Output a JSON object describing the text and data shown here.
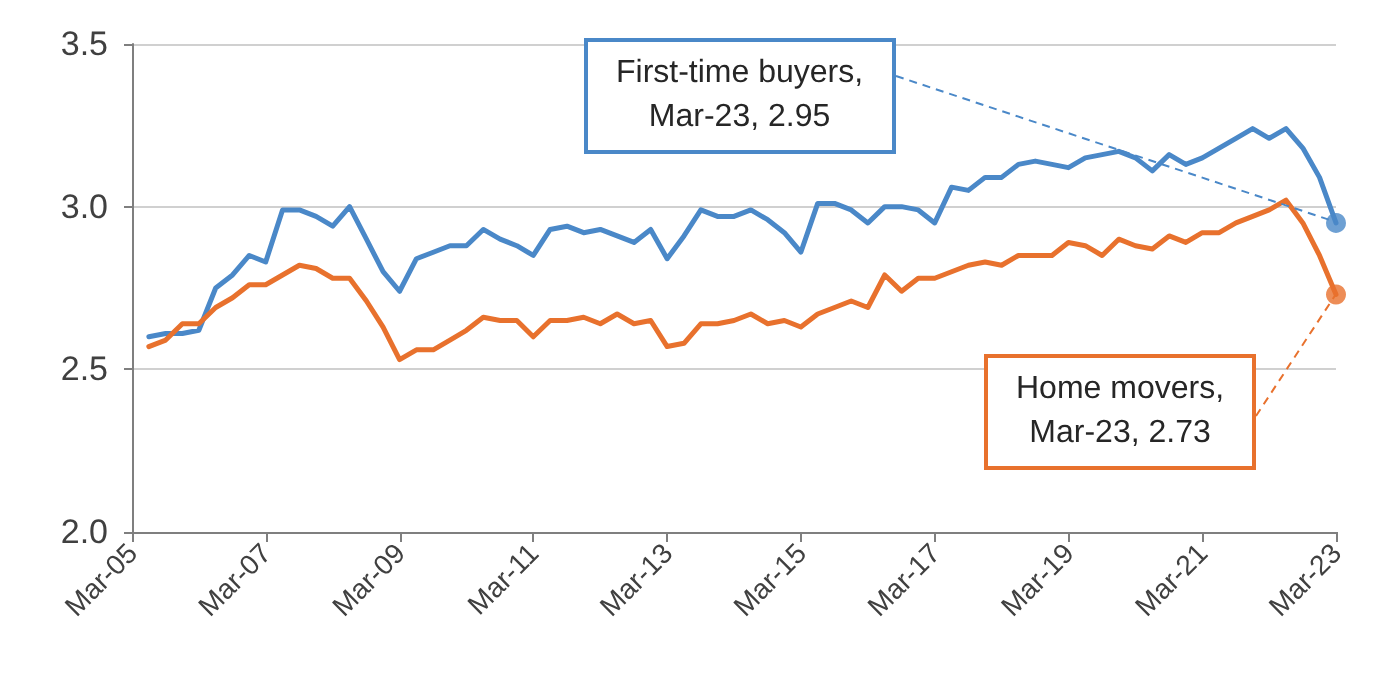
{
  "chart_data": {
    "type": "line",
    "x": [
      "2005-06",
      "2005-09",
      "2005-12",
      "2006-03",
      "2006-06",
      "2006-09",
      "2006-12",
      "2007-03",
      "2007-06",
      "2007-09",
      "2007-12",
      "2008-03",
      "2008-06",
      "2008-09",
      "2008-12",
      "2009-03",
      "2009-06",
      "2009-09",
      "2009-12",
      "2010-03",
      "2010-06",
      "2010-09",
      "2010-12",
      "2011-03",
      "2011-06",
      "2011-09",
      "2011-12",
      "2012-03",
      "2012-06",
      "2012-09",
      "2012-12",
      "2013-03",
      "2013-06",
      "2013-09",
      "2013-12",
      "2014-03",
      "2014-06",
      "2014-09",
      "2014-12",
      "2015-03",
      "2015-06",
      "2015-09",
      "2015-12",
      "2016-03",
      "2016-06",
      "2016-09",
      "2016-12",
      "2017-03",
      "2017-06",
      "2017-09",
      "2017-12",
      "2018-03",
      "2018-06",
      "2018-09",
      "2018-12",
      "2019-03",
      "2019-06",
      "2019-09",
      "2019-12",
      "2020-03",
      "2020-06",
      "2020-09",
      "2020-12",
      "2021-03",
      "2021-06",
      "2021-09",
      "2021-12",
      "2022-03",
      "2022-06",
      "2022-09",
      "2022-12",
      "2023-03"
    ],
    "series": [
      {
        "color": "#4a88c8",
        "values": [
          2.6,
          2.61,
          2.61,
          2.62,
          2.75,
          2.79,
          2.85,
          2.83,
          2.99,
          2.99,
          2.97,
          2.94,
          3.0,
          2.9,
          2.8,
          2.74,
          2.84,
          2.86,
          2.88,
          2.88,
          2.93,
          2.9,
          2.88,
          2.85,
          2.93,
          2.94,
          2.92,
          2.93,
          2.91,
          2.89,
          2.93,
          2.84,
          2.91,
          2.99,
          2.97,
          2.97,
          2.99,
          2.96,
          2.92,
          2.86,
          3.01,
          3.01,
          2.99,
          2.95,
          3.0,
          3.0,
          2.99,
          2.95,
          3.06,
          3.05,
          3.09,
          3.09,
          3.13,
          3.14,
          3.13,
          3.12,
          3.15,
          3.16,
          3.17,
          3.15,
          3.11,
          3.16,
          3.13,
          3.15,
          3.18,
          3.21,
          3.24,
          3.21,
          3.24,
          3.18,
          3.09,
          2.95
        ]
      },
      {
        "color": "#e8712d",
        "values": [
          2.57,
          2.59,
          2.64,
          2.64,
          2.69,
          2.72,
          2.76,
          2.76,
          2.79,
          2.82,
          2.81,
          2.78,
          2.78,
          2.71,
          2.63,
          2.53,
          2.56,
          2.56,
          2.59,
          2.62,
          2.66,
          2.65,
          2.65,
          2.6,
          2.65,
          2.65,
          2.66,
          2.64,
          2.67,
          2.64,
          2.65,
          2.57,
          2.58,
          2.64,
          2.64,
          2.65,
          2.67,
          2.64,
          2.65,
          2.63,
          2.67,
          2.69,
          2.71,
          2.69,
          2.79,
          2.74,
          2.78,
          2.78,
          2.8,
          2.82,
          2.83,
          2.82,
          2.85,
          2.85,
          2.85,
          2.89,
          2.88,
          2.85,
          2.9,
          2.88,
          2.87,
          2.91,
          2.89,
          2.92,
          2.92,
          2.95,
          2.97,
          2.99,
          3.02,
          2.95,
          2.85,
          2.73
        ]
      }
    ],
    "xlim": [
      "2005-03",
      "2023-03"
    ],
    "xticks": [
      {
        "value": "2005-03",
        "label": "Mar-05"
      },
      {
        "value": "2007-03",
        "label": "Mar-07"
      },
      {
        "value": "2009-03",
        "label": "Mar-09"
      },
      {
        "value": "2011-03",
        "label": "Mar-11"
      },
      {
        "value": "2013-03",
        "label": "Mar-13"
      },
      {
        "value": "2015-03",
        "label": "Mar-15"
      },
      {
        "value": "2017-03",
        "label": "Mar-17"
      },
      {
        "value": "2019-03",
        "label": "Mar-19"
      },
      {
        "value": "2021-03",
        "label": "Mar-21"
      },
      {
        "value": "2023-03",
        "label": "Mar-23"
      }
    ],
    "ylim": [
      2.0,
      3.5
    ],
    "yticks": [
      {
        "value": 2.0,
        "label": "2.0"
      },
      {
        "value": 2.5,
        "label": "2.5"
      },
      {
        "value": 3.0,
        "label": "3.0"
      },
      {
        "value": 3.5,
        "label": "3.5"
      }
    ],
    "annotations": [
      {
        "text": "First-time buyers,\nMar-23, 2.95",
        "x": "2023-03",
        "y": 2.95
      },
      {
        "text": "Home movers,\nMar-23, 2.73",
        "x": "2023-03",
        "y": 2.73
      }
    ],
    "grid": "y",
    "marker": "none",
    "line_style": "solid"
  }
}
